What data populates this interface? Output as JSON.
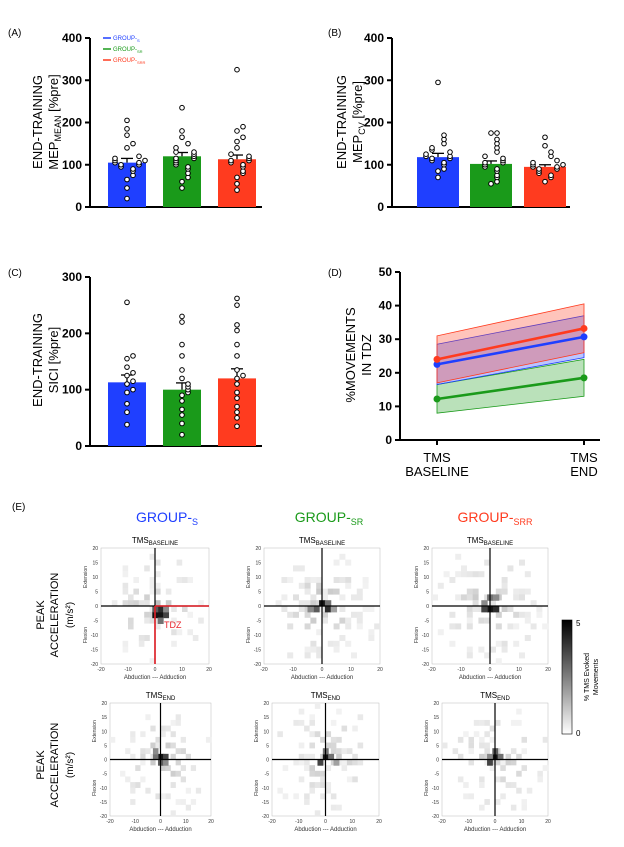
{
  "colors": {
    "s": "#1f3fff",
    "sr": "#1a9a1a",
    "srr": "#ff3b1f",
    "tdz": "#e8232b",
    "axis": "#000000"
  },
  "panels": {
    "A": {
      "label": "(A)",
      "ylabel1": "END-TRAINING",
      "ylabel2_main": "MEP",
      "ylabel2_sub": "MEAN",
      "ylabel2_tail": " [%pre]"
    },
    "B": {
      "label": "(B)",
      "ylabel1": "END-TRAINING",
      "ylabel2_main": "MEP",
      "ylabel2_sub": "CV",
      "ylabel2_tail": " [%pre]"
    },
    "C": {
      "label": "(C)",
      "ylabel1": "END-TRAINING",
      "ylabel2_main": "SICI [%pre]",
      "ylabel2_sub": "",
      "ylabel2_tail": ""
    },
    "D": {
      "label": "(D)",
      "ylabel1": "%MOVEMENTS",
      "ylabel2": "IN TDZ",
      "x1_line1": "TMS",
      "x1_line2": "BASELINE",
      "x2_line1": "TMS",
      "x2_line2": "END"
    },
    "E": {
      "label": "(E)"
    }
  },
  "legend": [
    {
      "main": "GROUP",
      "sub": "S"
    },
    {
      "main": "GROUP",
      "sub": "SR"
    },
    {
      "main": "GROUP",
      "sub": "SRR"
    }
  ],
  "chart_data": [
    {
      "id": "A",
      "type": "bar",
      "title": "",
      "xlabel": "",
      "ylabel": "END-TRAINING MEP MEAN [%pre]",
      "ylim": [
        0,
        400
      ],
      "yticks": [
        0,
        100,
        200,
        300,
        400
      ],
      "categories": [
        "GROUP-S",
        "GROUP-SR",
        "GROUP-SRR"
      ],
      "values": [
        105,
        120,
        113
      ],
      "sem": [
        10,
        9,
        10
      ],
      "points": [
        [
          20,
          45,
          65,
          75,
          85,
          90,
          95,
          100,
          100,
          105,
          105,
          110,
          110,
          115,
          120,
          140,
          150,
          170,
          185,
          205
        ],
        [
          45,
          60,
          70,
          80,
          90,
          95,
          100,
          105,
          110,
          115,
          115,
          120,
          125,
          130,
          130,
          140,
          150,
          165,
          180,
          235
        ],
        [
          40,
          55,
          70,
          80,
          85,
          95,
          100,
          105,
          110,
          110,
          115,
          120,
          125,
          140,
          155,
          165,
          180,
          190,
          325
        ]
      ]
    },
    {
      "id": "B",
      "type": "bar",
      "title": "",
      "xlabel": "",
      "ylabel": "END-TRAINING MEP CV [%pre]",
      "ylim": [
        0,
        400
      ],
      "yticks": [
        0,
        100,
        200,
        300,
        400
      ],
      "categories": [
        "GROUP-S",
        "GROUP-SR",
        "GROUP-SRR"
      ],
      "values": [
        118,
        102,
        95
      ],
      "sem": [
        9,
        7,
        5
      ],
      "points": [
        [
          70,
          85,
          90,
          100,
          105,
          110,
          115,
          115,
          120,
          120,
          125,
          130,
          135,
          140,
          150,
          160,
          170,
          295
        ],
        [
          55,
          60,
          70,
          75,
          85,
          90,
          95,
          100,
          105,
          105,
          110,
          115,
          120,
          130,
          140,
          150,
          160,
          175,
          175
        ],
        [
          60,
          70,
          75,
          80,
          85,
          90,
          90,
          95,
          95,
          100,
          100,
          105,
          110,
          120,
          130,
          145,
          165
        ]
      ]
    },
    {
      "id": "C",
      "type": "bar",
      "title": "",
      "xlabel": "",
      "ylabel": "END-TRAINING SICI [%pre]",
      "ylim": [
        0,
        300
      ],
      "yticks": [
        0,
        100,
        200,
        300
      ],
      "categories": [
        "GROUP-S",
        "GROUP-SR",
        "GROUP-SRR"
      ],
      "values": [
        113,
        100,
        120
      ],
      "sem": [
        13,
        12,
        17
      ],
      "points": [
        [
          38,
          60,
          75,
          95,
          100,
          110,
          115,
          125,
          130,
          140,
          155,
          160,
          255
        ],
        [
          20,
          40,
          55,
          65,
          80,
          90,
          95,
          100,
          105,
          110,
          120,
          135,
          160,
          180,
          220,
          230
        ],
        [
          35,
          50,
          60,
          70,
          85,
          95,
          110,
          120,
          125,
          135,
          160,
          180,
          205,
          215,
          250,
          262
        ]
      ]
    },
    {
      "id": "D",
      "type": "line",
      "title": "",
      "xlabel": "",
      "ylabel": "%MOVEMENTS IN TDZ",
      "ylim": [
        0,
        50
      ],
      "yticks": [
        0,
        10,
        20,
        30,
        40,
        50
      ],
      "x": [
        "TMS BASELINE",
        "TMS END"
      ],
      "series": [
        {
          "name": "GROUP-S",
          "values": [
            22.5,
            30.7
          ],
          "lower": [
            16.5,
            24.5
          ],
          "upper": [
            28.5,
            37
          ]
        },
        {
          "name": "GROUP-SR",
          "values": [
            12.2,
            18.5
          ],
          "lower": [
            8,
            13
          ],
          "upper": [
            16.5,
            24
          ]
        },
        {
          "name": "GROUP-SRR",
          "values": [
            24,
            33.2
          ],
          "lower": [
            17,
            26
          ],
          "upper": [
            31,
            40.5
          ]
        }
      ]
    }
  ],
  "heatmaps": {
    "group_titles": [
      {
        "main": "GROUP-",
        "sub": "S"
      },
      {
        "main": "GROUP-",
        "sub": "SR"
      },
      {
        "main": "GROUP-",
        "sub": "SRR"
      }
    ],
    "row_titles": [
      {
        "main": "TMS",
        "sub": "BASELINE"
      },
      {
        "main": "TMS",
        "sub": "END"
      }
    ],
    "row_ylabel_1": "PEAK",
    "row_ylabel_2": "ACCELERATION",
    "row_ylabel_3": "(m/s²)",
    "yside_extension": "Extension",
    "yside_flexion": "Flexion",
    "xside": "Abduction   ---   Adduction",
    "xticks": [
      -20,
      -10,
      0,
      10,
      20
    ],
    "yticks": [
      20,
      15,
      10,
      5,
      0,
      -5,
      -10,
      -15,
      -20
    ],
    "tdz_label": "TDZ",
    "colorbar": {
      "max": "5",
      "min": "0",
      "label_1": "% TMS Evoked",
      "label_2": "Movements"
    }
  }
}
